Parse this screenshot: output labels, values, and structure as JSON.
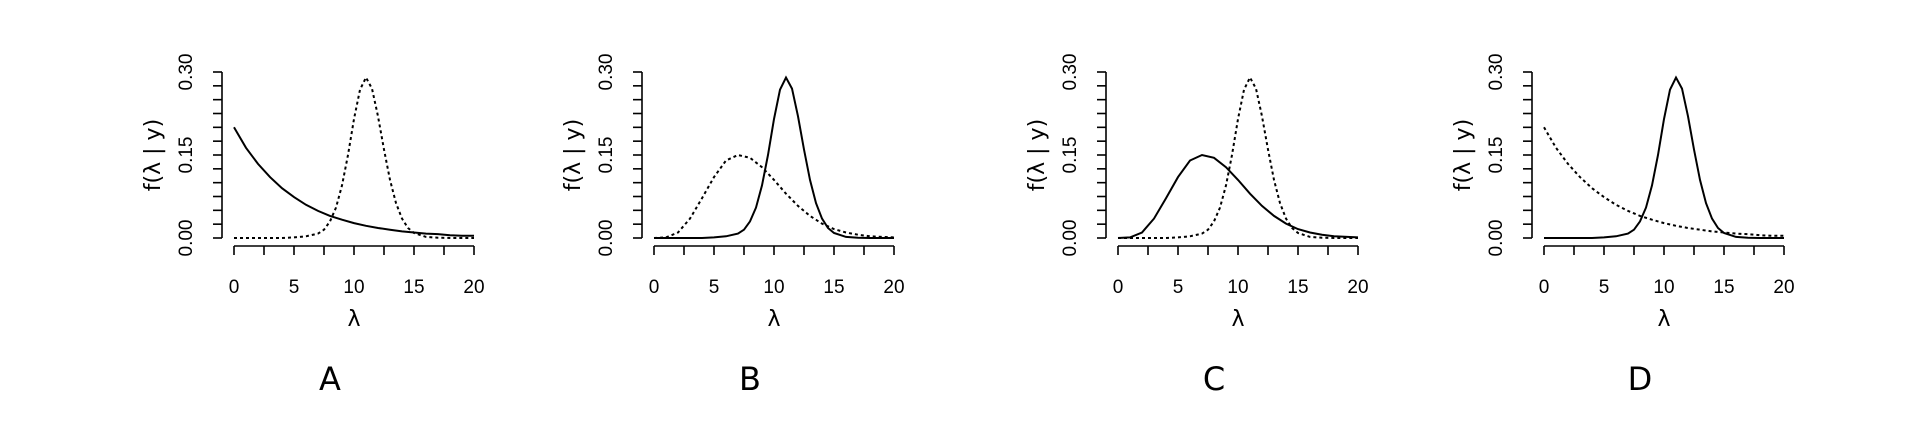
{
  "chart_data": [
    {
      "type": "line",
      "panel_label": "A",
      "xlabel": "λ",
      "ylabel": "f(λ | y)",
      "xlim": [
        0,
        20
      ],
      "ylim": [
        0,
        0.3
      ],
      "x_ticks": [
        "0",
        "5",
        "10",
        "15",
        "20"
      ],
      "y_ticks": [
        "0.00",
        "0.15",
        "0.30"
      ],
      "series": [
        {
          "style": "solid",
          "x": [
            0,
            1,
            2,
            3,
            4,
            5,
            6,
            7,
            8,
            9,
            10,
            11,
            12,
            13,
            14,
            15,
            16,
            17,
            18,
            19,
            20
          ],
          "y": [
            0.2,
            0.163,
            0.134,
            0.11,
            0.09,
            0.074,
            0.06,
            0.049,
            0.04,
            0.033,
            0.027,
            0.022,
            0.018,
            0.015,
            0.012,
            0.01,
            0.008,
            0.007,
            0.005,
            0.004,
            0.004
          ]
        },
        {
          "style": "dotted",
          "x": [
            0,
            2,
            4,
            5,
            6,
            7,
            7.5,
            8,
            8.5,
            9,
            9.5,
            10,
            10.5,
            11,
            11.5,
            12,
            12.5,
            13,
            13.5,
            14,
            14.5,
            15,
            16,
            17,
            18,
            20
          ],
          "y": [
            0,
            0,
            0,
            0.001,
            0.003,
            0.008,
            0.015,
            0.03,
            0.055,
            0.095,
            0.15,
            0.215,
            0.268,
            0.29,
            0.27,
            0.22,
            0.16,
            0.105,
            0.063,
            0.035,
            0.018,
            0.009,
            0.002,
            0.0005,
            0,
            0
          ]
        }
      ]
    },
    {
      "type": "line",
      "panel_label": "B",
      "xlabel": "λ",
      "ylabel": "f(λ | y)",
      "xlim": [
        0,
        20
      ],
      "ylim": [
        0,
        0.3
      ],
      "x_ticks": [
        "0",
        "5",
        "10",
        "15",
        "20"
      ],
      "y_ticks": [
        "0.00",
        "0.15",
        "0.30"
      ],
      "series": [
        {
          "style": "dotted",
          "x": [
            0,
            1,
            2,
            3,
            4,
            5,
            6,
            7,
            8,
            9,
            10,
            11,
            12,
            13,
            14,
            15,
            16,
            17,
            18,
            20
          ],
          "y": [
            0,
            0.001,
            0.01,
            0.035,
            0.072,
            0.11,
            0.14,
            0.15,
            0.145,
            0.128,
            0.105,
            0.08,
            0.058,
            0.04,
            0.026,
            0.016,
            0.01,
            0.006,
            0.003,
            0.001
          ]
        },
        {
          "style": "solid",
          "x": [
            0,
            2,
            4,
            5,
            6,
            7,
            7.5,
            8,
            8.5,
            9,
            9.5,
            10,
            10.5,
            11,
            11.5,
            12,
            12.5,
            13,
            13.5,
            14,
            14.5,
            15,
            16,
            17,
            18,
            20
          ],
          "y": [
            0,
            0,
            0,
            0.001,
            0.003,
            0.008,
            0.015,
            0.03,
            0.055,
            0.095,
            0.15,
            0.215,
            0.268,
            0.29,
            0.27,
            0.22,
            0.16,
            0.105,
            0.063,
            0.035,
            0.018,
            0.009,
            0.002,
            0.0005,
            0,
            0
          ]
        }
      ]
    },
    {
      "type": "line",
      "panel_label": "C",
      "xlabel": "λ",
      "ylabel": "f(λ | y)",
      "xlim": [
        0,
        20
      ],
      "ylim": [
        0,
        0.3
      ],
      "x_ticks": [
        "0",
        "5",
        "10",
        "15",
        "20"
      ],
      "y_ticks": [
        "0.00",
        "0.15",
        "0.30"
      ],
      "series": [
        {
          "style": "solid",
          "x": [
            0,
            1,
            2,
            3,
            4,
            5,
            6,
            7,
            8,
            9,
            10,
            11,
            12,
            13,
            14,
            15,
            16,
            17,
            18,
            20
          ],
          "y": [
            0,
            0.001,
            0.01,
            0.035,
            0.072,
            0.11,
            0.14,
            0.15,
            0.145,
            0.128,
            0.105,
            0.08,
            0.058,
            0.04,
            0.026,
            0.016,
            0.01,
            0.006,
            0.003,
            0.001
          ]
        },
        {
          "style": "dotted",
          "x": [
            0,
            2,
            4,
            5,
            6,
            7,
            7.5,
            8,
            8.5,
            9,
            9.5,
            10,
            10.5,
            11,
            11.5,
            12,
            12.5,
            13,
            13.5,
            14,
            14.5,
            15,
            16,
            17,
            18,
            20
          ],
          "y": [
            0,
            0,
            0,
            0.001,
            0.003,
            0.008,
            0.015,
            0.03,
            0.055,
            0.095,
            0.15,
            0.215,
            0.268,
            0.29,
            0.27,
            0.22,
            0.16,
            0.105,
            0.063,
            0.035,
            0.018,
            0.009,
            0.002,
            0.0005,
            0,
            0
          ]
        }
      ]
    },
    {
      "type": "line",
      "panel_label": "D",
      "xlabel": "λ",
      "ylabel": "f(λ | y)",
      "xlim": [
        0,
        20
      ],
      "ylim": [
        0,
        0.3
      ],
      "x_ticks": [
        "0",
        "5",
        "10",
        "15",
        "20"
      ],
      "y_ticks": [
        "0.00",
        "0.15",
        "0.30"
      ],
      "series": [
        {
          "style": "dotted",
          "x": [
            0,
            1,
            2,
            3,
            4,
            5,
            6,
            7,
            8,
            9,
            10,
            11,
            12,
            13,
            14,
            15,
            16,
            17,
            18,
            19,
            20
          ],
          "y": [
            0.2,
            0.163,
            0.134,
            0.11,
            0.09,
            0.074,
            0.06,
            0.049,
            0.04,
            0.033,
            0.027,
            0.022,
            0.018,
            0.015,
            0.012,
            0.01,
            0.008,
            0.007,
            0.005,
            0.004,
            0.004
          ]
        },
        {
          "style": "solid",
          "x": [
            0,
            2,
            4,
            5,
            6,
            7,
            7.5,
            8,
            8.5,
            9,
            9.5,
            10,
            10.5,
            11,
            11.5,
            12,
            12.5,
            13,
            13.5,
            14,
            14.5,
            15,
            16,
            17,
            18,
            20
          ],
          "y": [
            0,
            0,
            0,
            0.001,
            0.003,
            0.008,
            0.015,
            0.03,
            0.055,
            0.095,
            0.15,
            0.215,
            0.268,
            0.29,
            0.27,
            0.22,
            0.16,
            0.105,
            0.063,
            0.035,
            0.018,
            0.009,
            0.002,
            0.0005,
            0,
            0
          ]
        }
      ]
    }
  ]
}
